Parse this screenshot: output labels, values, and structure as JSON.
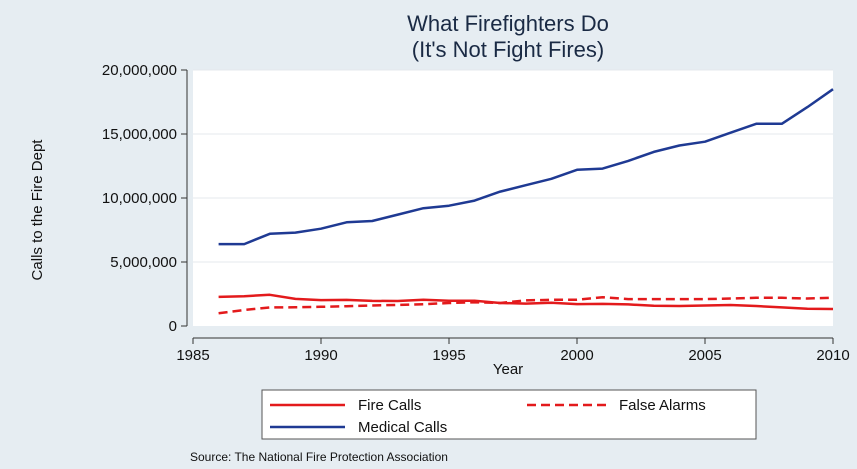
{
  "chart_data": {
    "type": "line",
    "title": "What Firefighters Do",
    "subtitle": "(It's Not Fight Fires)",
    "xlabel": "Year",
    "ylabel": "Calls to the Fire Dept",
    "source": "Source: The National Fire Protection Association",
    "xlim": [
      1985,
      2010
    ],
    "ylim": [
      0,
      20000000
    ],
    "x_ticks": [
      1985,
      1990,
      1995,
      2000,
      2005,
      2010
    ],
    "y_ticks": [
      0,
      5000000,
      10000000,
      15000000,
      20000000
    ],
    "x_tick_labels": [
      "1985",
      "1990",
      "1995",
      "2000",
      "2005",
      "2010"
    ],
    "y_tick_labels": [
      "0",
      "5,000,000",
      "10,000,000",
      "15,000,000",
      "20,000,000"
    ],
    "grid": "horizontal",
    "legend_position": "bottom",
    "x": [
      1986,
      1987,
      1988,
      1989,
      1990,
      1991,
      1992,
      1993,
      1994,
      1995,
      1996,
      1997,
      1998,
      1999,
      2000,
      2001,
      2002,
      2003,
      2004,
      2005,
      2006,
      2007,
      2008,
      2009,
      2010
    ],
    "series": [
      {
        "name": "Fire Calls",
        "color": "#e31a1c",
        "dash": "solid",
        "values": [
          2270000,
          2330000,
          2440000,
          2120000,
          2020000,
          2040000,
          1960000,
          1950000,
          2050000,
          1970000,
          1980000,
          1800000,
          1750000,
          1820000,
          1710000,
          1730000,
          1690000,
          1580000,
          1560000,
          1600000,
          1640000,
          1560000,
          1450000,
          1350000,
          1330000
        ]
      },
      {
        "name": "False Alarms",
        "color": "#e31a1c",
        "dash": "dashed",
        "values": [
          1000000,
          1250000,
          1450000,
          1460000,
          1500000,
          1550000,
          1600000,
          1650000,
          1700000,
          1800000,
          1850000,
          1800000,
          2000000,
          2050000,
          2050000,
          2250000,
          2100000,
          2100000,
          2100000,
          2100000,
          2150000,
          2200000,
          2200000,
          2150000,
          2200000
        ]
      },
      {
        "name": "Medical Calls",
        "color": "#1f3a93",
        "dash": "solid",
        "values": [
          6400000,
          6400000,
          7200000,
          7300000,
          7600000,
          8100000,
          8200000,
          8700000,
          9200000,
          9400000,
          9800000,
          10500000,
          11000000,
          11500000,
          12200000,
          12300000,
          12900000,
          13600000,
          14100000,
          14400000,
          15100000,
          15800000,
          15800000,
          17100000,
          18500000
        ]
      }
    ]
  }
}
